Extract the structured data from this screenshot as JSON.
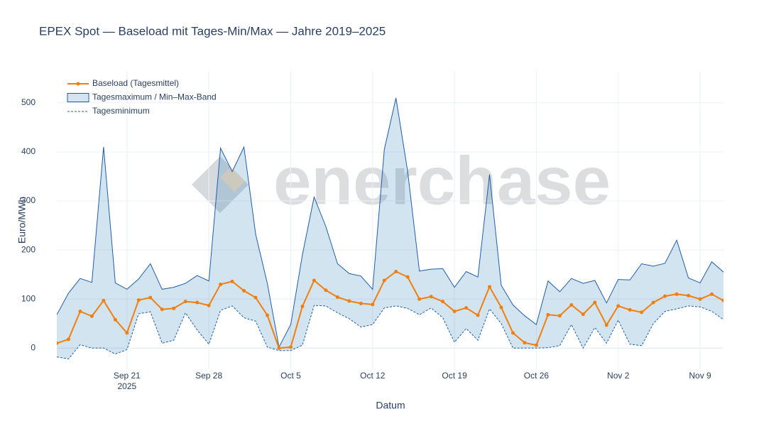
{
  "chart_data": {
    "type": "line",
    "title": "EPEX Spot — Baseload mit Tages-Min/Max — Jahre 2019–2025",
    "xlabel": "Datum",
    "ylabel": "Euro/MWh",
    "watermark": "enerchase",
    "x": [
      "2025-09-15",
      "2025-09-16",
      "2025-09-17",
      "2025-09-18",
      "2025-09-19",
      "2025-09-20",
      "2025-09-21",
      "2025-09-22",
      "2025-09-23",
      "2025-09-24",
      "2025-09-25",
      "2025-09-26",
      "2025-09-27",
      "2025-09-28",
      "2025-09-29",
      "2025-09-30",
      "2025-10-01",
      "2025-10-02",
      "2025-10-03",
      "2025-10-04",
      "2025-10-05",
      "2025-10-06",
      "2025-10-07",
      "2025-10-08",
      "2025-10-09",
      "2025-10-10",
      "2025-10-11",
      "2025-10-12",
      "2025-10-13",
      "2025-10-14",
      "2025-10-15",
      "2025-10-16",
      "2025-10-17",
      "2025-10-18",
      "2025-10-19",
      "2025-10-20",
      "2025-10-21",
      "2025-10-22",
      "2025-10-23",
      "2025-10-24",
      "2025-10-25",
      "2025-10-26",
      "2025-10-27",
      "2025-10-28",
      "2025-10-29",
      "2025-10-30",
      "2025-10-31",
      "2025-11-01",
      "2025-11-02",
      "2025-11-03",
      "2025-11-04",
      "2025-11-05",
      "2025-11-06",
      "2025-11-07",
      "2025-11-08",
      "2025-11-09",
      "2025-11-10",
      "2025-11-11"
    ],
    "series": [
      {
        "name": "Baseload (Tagesmittel)",
        "color": "#f07f0e",
        "values": [
          10,
          18,
          75,
          65,
          97,
          58,
          31,
          98,
          103,
          79,
          81,
          95,
          93,
          87,
          130,
          136,
          117,
          103,
          67,
          0,
          2,
          85,
          138,
          118,
          104,
          96,
          91,
          89,
          138,
          156,
          145,
          100,
          105,
          95,
          75,
          82,
          67,
          125,
          83,
          31,
          11,
          6,
          68,
          66,
          88,
          69,
          93,
          47,
          86,
          78,
          73,
          93,
          106,
          110,
          107,
          100,
          110,
          97
        ]
      },
      {
        "name": "Tagesmaximum / Min–Max-Band",
        "color": "#1f5fa8",
        "fill": "rgba(31,119,180,0.2)",
        "values": [
          68,
          112,
          142,
          134,
          410,
          133,
          120,
          141,
          172,
          120,
          124,
          132,
          148,
          137,
          408,
          360,
          410,
          232,
          132,
          2,
          48,
          190,
          308,
          248,
          172,
          152,
          147,
          120,
          405,
          510,
          360,
          157,
          161,
          162,
          124,
          156,
          145,
          354,
          128,
          88,
          66,
          48,
          137,
          115,
          142,
          132,
          138,
          92,
          140,
          139,
          172,
          167,
          173,
          220,
          143,
          133,
          176,
          155
        ]
      },
      {
        "name": "Tagesminimum",
        "color": "#1f5fa8",
        "dash": true,
        "values": [
          -18,
          -22,
          7,
          0,
          0,
          -12,
          -3,
          70,
          74,
          10,
          16,
          72,
          37,
          8,
          77,
          86,
          62,
          55,
          2,
          -5,
          -5,
          6,
          87,
          86,
          72,
          60,
          43,
          48,
          82,
          86,
          81,
          68,
          82,
          62,
          12,
          40,
          16,
          80,
          50,
          0,
          0,
          0,
          1,
          5,
          48,
          0,
          42,
          10,
          57,
          8,
          5,
          50,
          75,
          80,
          86,
          84,
          75,
          58
        ]
      }
    ],
    "xlim": [
      "2025-09-15",
      "2025-11-11"
    ],
    "xticks": [
      {
        "value": "2025-09-21",
        "label": "Sep 21\n2025"
      },
      {
        "value": "2025-09-28",
        "label": "Sep 28"
      },
      {
        "value": "2025-10-05",
        "label": "Oct 5"
      },
      {
        "value": "2025-10-12",
        "label": "Oct 12"
      },
      {
        "value": "2025-10-19",
        "label": "Oct 19"
      },
      {
        "value": "2025-10-26",
        "label": "Oct 26"
      },
      {
        "value": "2025-11-02",
        "label": "Nov 2"
      },
      {
        "value": "2025-11-09",
        "label": "Nov 9"
      }
    ],
    "ylim": [
      -43,
      565
    ],
    "yticks": [
      0,
      100,
      200,
      300,
      400,
      500
    ],
    "grid": true,
    "legend": "top-left"
  }
}
